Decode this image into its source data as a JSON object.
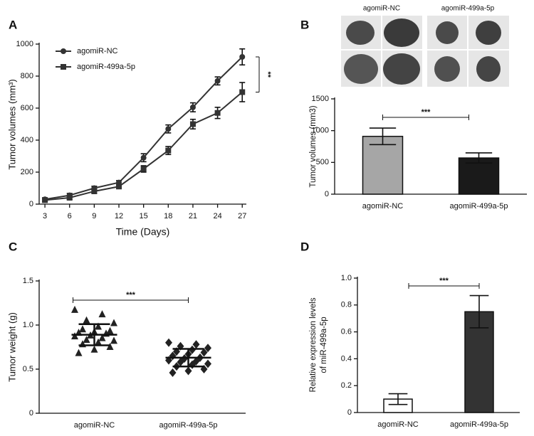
{
  "chart_data": [
    {
      "type": "line",
      "panel": "A",
      "x_label": "Time (Days)",
      "y_label": "Tumor volumes (mm³)",
      "x": [
        3,
        6,
        9,
        12,
        15,
        18,
        21,
        24,
        27
      ],
      "xlim": [
        2.3,
        27.5
      ],
      "xticks": [
        3,
        6,
        9,
        12,
        15,
        18,
        21,
        24,
        27
      ],
      "ylim": [
        0,
        1000
      ],
      "yticks": [
        0,
        200,
        400,
        600,
        800,
        1000
      ],
      "series": [
        {
          "name": "agomiR-NC",
          "color": "#333333",
          "marker": "circle",
          "values": [
            30,
            55,
            100,
            135,
            290,
            470,
            605,
            770,
            920
          ],
          "errors": [
            10,
            12,
            12,
            12,
            25,
            25,
            28,
            25,
            50
          ]
        },
        {
          "name": "agomiR-499a-5p",
          "color": "#333333",
          "marker": "square",
          "values": [
            25,
            40,
            80,
            110,
            220,
            335,
            500,
            570,
            700
          ],
          "errors": [
            10,
            10,
            12,
            12,
            20,
            25,
            30,
            35,
            60
          ]
        }
      ],
      "annotation": "**"
    },
    {
      "type": "bar",
      "panel": "B",
      "image_labels": [
        "agomiR-NC",
        "agomiR-499a-5p"
      ],
      "y_label": "Tumor volumes (mm3)",
      "categories": [
        "agomiR-NC",
        "agomiR-499a-5p"
      ],
      "values": [
        910,
        570
      ],
      "errors": [
        130,
        80
      ],
      "colors": [
        "#a6a6a6",
        "#1a1a1a"
      ],
      "ylim": [
        0,
        1500
      ],
      "yticks": [
        0,
        500,
        1000,
        1500
      ],
      "annotation": "***"
    },
    {
      "type": "dot",
      "panel": "C",
      "y_label": "Tumor weight (g)",
      "categories": [
        "agomiR-NC",
        "agomiR-499a-5p"
      ],
      "markers": [
        "triangle",
        "diamond"
      ],
      "color": "#222222",
      "values": [
        [
          1.17,
          1.12,
          1.05,
          1.02,
          0.98,
          0.95,
          0.93,
          0.92,
          0.91,
          0.9,
          0.88,
          0.87,
          0.85,
          0.83,
          0.82,
          0.8,
          0.78,
          0.75,
          0.72,
          0.68
        ],
        [
          0.8,
          0.78,
          0.76,
          0.74,
          0.72,
          0.7,
          0.69,
          0.67,
          0.65,
          0.63,
          0.62,
          0.6,
          0.59,
          0.58,
          0.56,
          0.55,
          0.53,
          0.5,
          0.48,
          0.46
        ]
      ],
      "mean": [
        0.89,
        0.63
      ],
      "sd": [
        0.12,
        0.1
      ],
      "ylim": [
        0,
        1.5
      ],
      "yticks": [
        0,
        0.5,
        {
          "value": 1,
          "label": "1.0"
        },
        1.5
      ],
      "annotation": "***"
    },
    {
      "type": "bar",
      "panel": "D",
      "y_label": [
        "Relative expression levels",
        "of miR-499a-5p"
      ],
      "categories": [
        "agomiR-NC",
        "agomiR-499a-5p"
      ],
      "values": [
        0.1,
        0.75
      ],
      "errors": [
        0.04,
        0.12
      ],
      "colors": [
        "#ffffff",
        "#333333"
      ],
      "ylim": [
        0,
        1
      ],
      "yticks": [
        0,
        0.2,
        0.4,
        0.6,
        0.8,
        {
          "value": 1,
          "label": "1.0"
        }
      ],
      "annotation": "***"
    }
  ]
}
